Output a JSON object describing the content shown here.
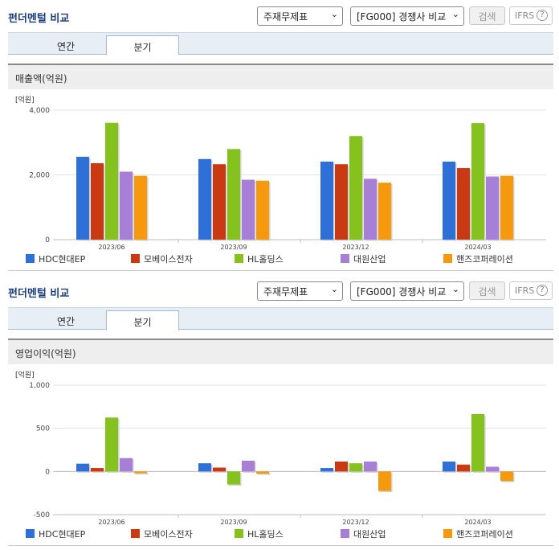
{
  "section_title": "펀더멘털 비교",
  "select_statement": "주재무제표",
  "select_peer": "[FG000] 경쟁사 비교",
  "search_label": "검색",
  "ifrs_label": "IFRS",
  "help_symbol": "?",
  "tabs": [
    "연간",
    "분기"
  ],
  "active_tab": "분기",
  "colors": {
    "HDC현대EP": "#2e6fd8",
    "모베이스전자": "#c93a12",
    "HL홀딩스": "#86c21e",
    "대원산업": "#a77fd6",
    "핸즈코퍼레이션": "#f5990f"
  },
  "chart_data": [
    {
      "type": "bar",
      "title": "매출액(억원)",
      "unit_label": "[억원]",
      "categories": [
        "2023/06",
        "2023/09",
        "2023/12",
        "2024/03"
      ],
      "ylim": [
        0,
        4000
      ],
      "yticks": [
        0,
        2000,
        4000
      ],
      "ytick_labels": [
        "0",
        "2,000",
        "4,000"
      ],
      "legend": "bottom",
      "series": [
        {
          "name": "HDC현대EP",
          "values": [
            2560,
            2490,
            2410,
            2410
          ]
        },
        {
          "name": "모베이스전자",
          "values": [
            2360,
            2330,
            2330,
            2210
          ]
        },
        {
          "name": "HL홀딩스",
          "values": [
            3610,
            2800,
            3200,
            3600
          ]
        },
        {
          "name": "대원산업",
          "values": [
            2100,
            1850,
            1880,
            1950
          ]
        },
        {
          "name": "핸즈코퍼레이션",
          "values": [
            1970,
            1820,
            1760,
            1970
          ]
        }
      ]
    },
    {
      "type": "bar",
      "title": "영업이익(억원)",
      "unit_label": "[억원]",
      "categories": [
        "2023/06",
        "2023/09",
        "2023/12",
        "2024/03"
      ],
      "ylim": [
        -500,
        1000
      ],
      "yticks": [
        -500,
        0,
        500,
        1000
      ],
      "ytick_labels": [
        "-500",
        "0",
        "500",
        "1,000"
      ],
      "legend": "bottom",
      "series": [
        {
          "name": "HDC현대EP",
          "values": [
            90,
            95,
            40,
            115
          ]
        },
        {
          "name": "모베이스전자",
          "values": [
            40,
            45,
            115,
            80
          ]
        },
        {
          "name": "HL홀딩스",
          "values": [
            625,
            -150,
            95,
            665
          ]
        },
        {
          "name": "대원산업",
          "values": [
            155,
            125,
            115,
            55
          ]
        },
        {
          "name": "핸즈코퍼레이션",
          "values": [
            -20,
            -25,
            -225,
            -110
          ]
        }
      ]
    }
  ]
}
